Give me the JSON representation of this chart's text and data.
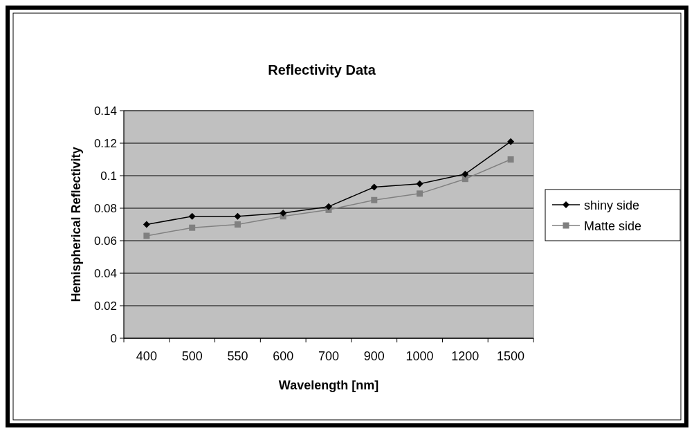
{
  "chart_data": {
    "type": "line",
    "title": "Reflectivity Data",
    "xlabel": "Wavelength [nm]",
    "ylabel": "Hemispherical Reflectivity",
    "categories": [
      "400",
      "500",
      "550",
      "600",
      "700",
      "900",
      "1000",
      "1200",
      "1500"
    ],
    "series": [
      {
        "name": "shiny side",
        "color": "#000000",
        "marker": "diamond",
        "values": [
          0.07,
          0.075,
          0.075,
          0.077,
          0.081,
          0.093,
          0.095,
          0.101,
          0.121
        ]
      },
      {
        "name": "Matte side",
        "color": "#808080",
        "marker": "square",
        "values": [
          0.063,
          0.068,
          0.07,
          0.075,
          0.079,
          0.085,
          0.089,
          0.098,
          0.11
        ]
      }
    ],
    "ylim": [
      0,
      0.14
    ],
    "yticks": [
      0,
      0.02,
      0.04,
      0.06,
      0.08,
      0.1,
      0.12,
      0.14
    ],
    "grid": "y",
    "legend": "right",
    "line_style": "solid"
  }
}
